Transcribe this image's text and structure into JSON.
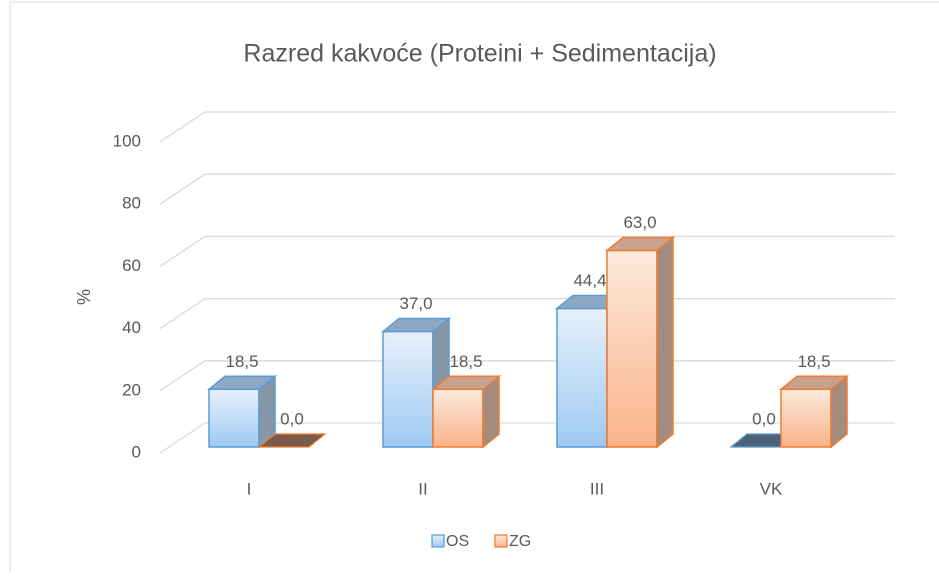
{
  "chart_data": {
    "type": "bar3d",
    "title": "Razred kakvoće (Proteini + Sedimentacija)",
    "ylabel": "%",
    "categories": [
      "I",
      "II",
      "III",
      "VK"
    ],
    "series": [
      {
        "name": "OS",
        "color": "#5b9bd5",
        "values": [
          18.5,
          37.0,
          44.4,
          0.0
        ],
        "value_labels": [
          "18,5",
          "37,0",
          "44,4",
          "0,0"
        ]
      },
      {
        "name": "ZG",
        "color": "#ed7d31",
        "values": [
          0.0,
          18.5,
          63.0,
          18.5
        ],
        "value_labels": [
          "0,0",
          "18,5",
          "63,0",
          "18,5"
        ]
      }
    ],
    "ylim": [
      0,
      100
    ],
    "yticks": [
      0,
      20,
      40,
      60,
      80,
      100
    ],
    "grid": true,
    "legend": "bottom"
  }
}
